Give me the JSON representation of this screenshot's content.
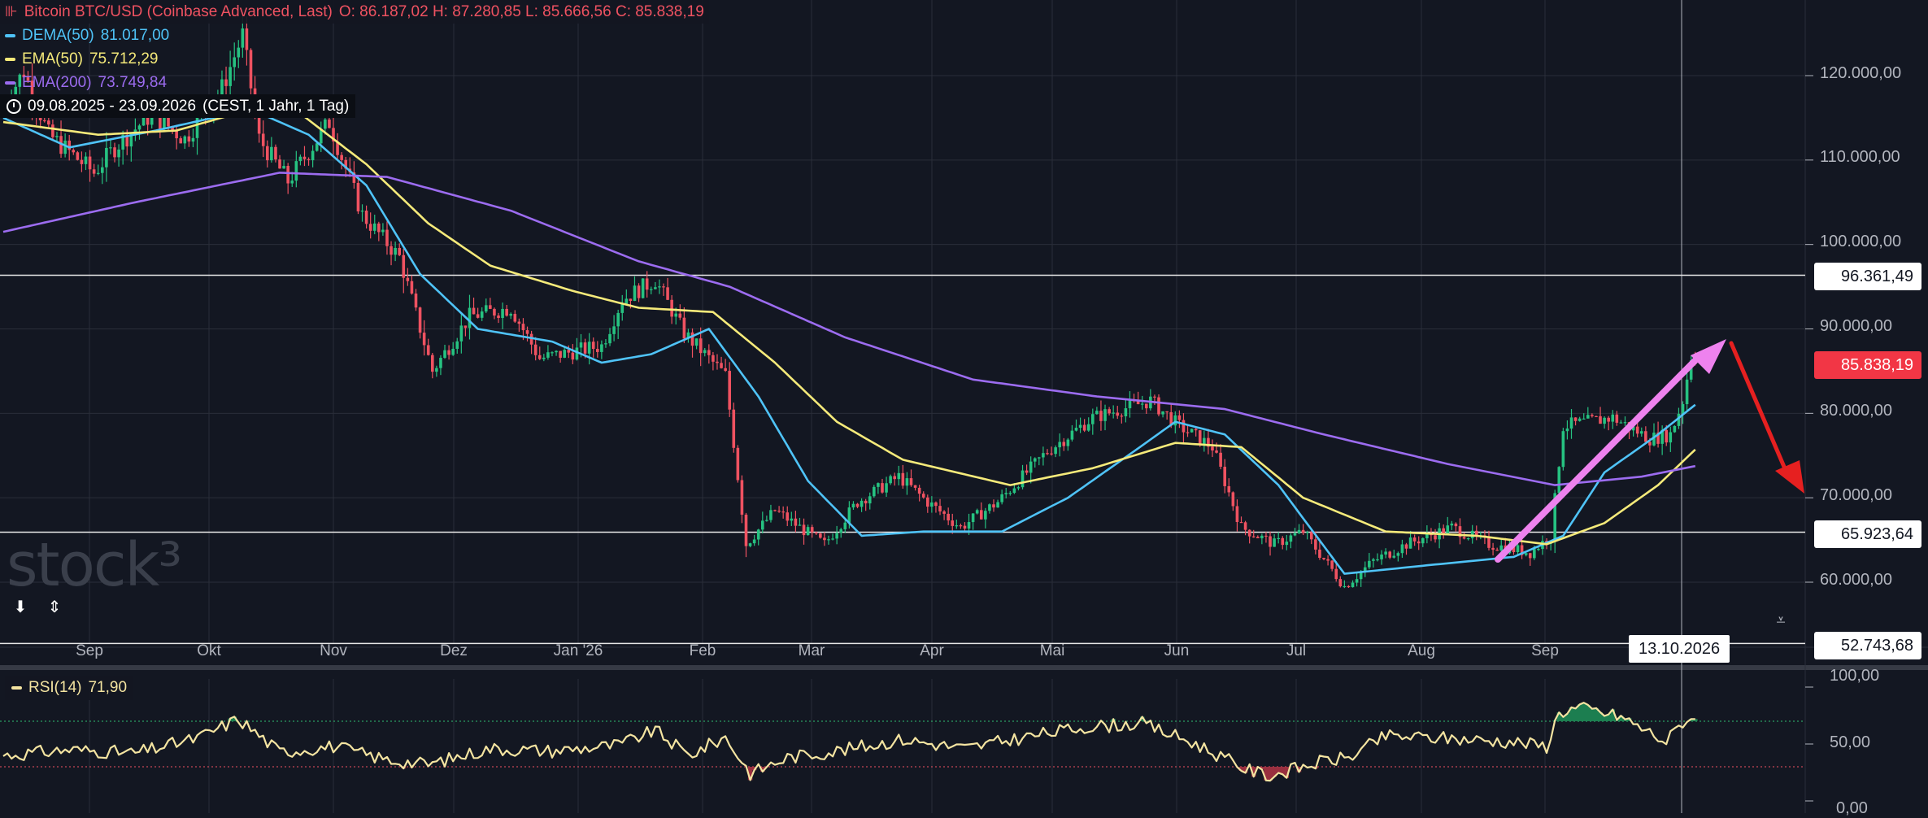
{
  "colors": {
    "background": "#131722",
    "grid": "#2a2e39",
    "candle_up": "#26c281",
    "candle_down": "#ef5261",
    "dema": "#4fc3f7",
    "ema50": "#f5ea7a",
    "ema200": "#9c6cf0",
    "rsi": "#f4e4a1",
    "annotation_up_arrow": "#ee82ee",
    "annotation_down_arrow": "#e62020"
  },
  "legend": {
    "title": "Bitcoin BTC/USD (Coinbase Advanced, Last)",
    "ohlc": "O: 86.187,02  H: 87.280,85  L: 85.666,56  C: 85.838,19",
    "dema_label": "DEMA(50)",
    "dema_value": "81.017,00",
    "ema50_label": "EMA(50)",
    "ema50_value": "75.712,29",
    "ema200_label": "EMA(200)",
    "ema200_value": "73.749,84",
    "range": "09.08.2025 - 23.09.2026",
    "range_detail": "(CEST, 1 Jahr, 1 Tag)"
  },
  "watermark": "stock³",
  "price_axis": {
    "ticks": [
      "120.000,00",
      "110.000,00",
      "100.000,00",
      "90.000,00",
      "80.000,00",
      "70.000,00",
      "60.000,00"
    ],
    "labels": {
      "resistance": "96.361,49",
      "current": "85.838,19",
      "support": "65.923,64",
      "bottom": "52.743,68"
    }
  },
  "date_axis": {
    "ticks": [
      "Sep",
      "Okt",
      "Nov",
      "Dez",
      "Jan '26",
      "Feb",
      "Mar",
      "Apr",
      "Mai",
      "Jun",
      "Jul",
      "Aug",
      "Sep"
    ],
    "crosshair_date": "13.10.2026"
  },
  "rsi_panel": {
    "label": "RSI(14)",
    "value": "71,90",
    "ticks": [
      "100,00",
      "50,00",
      "0,00"
    ]
  },
  "chart_data": [
    {
      "type": "candlestick",
      "title": "Bitcoin BTC/USD (Coinbase Advanced, Last)",
      "ylim": [
        52743.68,
        127000
      ],
      "x_start": "2025-08-09",
      "x_end": "2026-09-23",
      "horizontal_lines": [
        96361.49,
        65923.64
      ],
      "anchors": [
        [
          "2025-08-09",
          116500
        ],
        [
          "2025-08-14",
          120500
        ],
        [
          "2025-08-20",
          113000
        ],
        [
          "2025-08-31",
          108500
        ],
        [
          "2025-09-05",
          111500
        ],
        [
          "2025-09-14",
          115500
        ],
        [
          "2025-09-22",
          112500
        ],
        [
          "2025-10-01",
          118500
        ],
        [
          "2025-10-06",
          124800
        ],
        [
          "2025-10-10",
          112500
        ],
        [
          "2025-10-17",
          107500
        ],
        [
          "2025-10-27",
          114500
        ],
        [
          "2025-11-04",
          103500
        ],
        [
          "2025-11-13",
          98500
        ],
        [
          "2025-11-21",
          85000
        ],
        [
          "2025-11-30",
          91500
        ],
        [
          "2025-12-10",
          92500
        ],
        [
          "2025-12-17",
          86500
        ],
        [
          "2026-01-01",
          88000
        ],
        [
          "2026-01-06",
          93500
        ],
        [
          "2026-01-14",
          95800
        ],
        [
          "2026-01-21",
          89500
        ],
        [
          "2026-01-31",
          84500
        ],
        [
          "2026-02-05",
          64500
        ],
        [
          "2026-02-12",
          68500
        ],
        [
          "2026-02-24",
          64500
        ],
        [
          "2026-03-04",
          69500
        ],
        [
          "2026-03-14",
          72500
        ],
        [
          "2026-03-21",
          69500
        ],
        [
          "2026-03-29",
          66500
        ],
        [
          "2026-04-07",
          69500
        ],
        [
          "2026-04-19",
          75500
        ],
        [
          "2026-04-30",
          79500
        ],
        [
          "2026-05-14",
          81500
        ],
        [
          "2026-05-21",
          78500
        ],
        [
          "2026-05-29",
          76000
        ],
        [
          "2026-06-05",
          66500
        ],
        [
          "2026-06-13",
          64500
        ],
        [
          "2026-06-20",
          66000
        ],
        [
          "2026-06-30",
          59500
        ],
        [
          "2026-07-07",
          62500
        ],
        [
          "2026-07-15",
          64500
        ],
        [
          "2026-07-26",
          66500
        ],
        [
          "2026-08-04",
          64500
        ],
        [
          "2026-08-14",
          63500
        ],
        [
          "2026-08-19",
          65500
        ],
        [
          "2026-08-22",
          78500
        ],
        [
          "2026-09-03",
          79500
        ],
        [
          "2026-09-12",
          77000
        ],
        [
          "2026-09-17",
          77500
        ],
        [
          "2026-09-20",
          81500
        ],
        [
          "2026-09-22",
          86800
        ],
        [
          "2026-09-23",
          85838.19
        ]
      ],
      "last_candle": {
        "open": 86187.02,
        "high": 87280.85,
        "low": 85666.56,
        "close": 85838.19
      }
    },
    {
      "type": "line",
      "series": [
        {
          "name": "DEMA(50)",
          "last": 81017.0,
          "points": [
            [
              "2025-08-09",
              115000
            ],
            [
              "2025-08-25",
              111500
            ],
            [
              "2025-09-15",
              113500
            ],
            [
              "2025-10-08",
              116000
            ],
            [
              "2025-10-22",
              113000
            ],
            [
              "2025-11-05",
              107000
            ],
            [
              "2025-11-18",
              96500
            ],
            [
              "2025-12-02",
              90000
            ],
            [
              "2025-12-20",
              88500
            ],
            [
              "2026-01-01",
              86000
            ],
            [
              "2026-01-13",
              87000
            ],
            [
              "2026-01-27",
              90000
            ],
            [
              "2026-02-08",
              82000
            ],
            [
              "2026-02-20",
              72000
            ],
            [
              "2026-03-05",
              65500
            ],
            [
              "2026-03-20",
              66000
            ],
            [
              "2026-04-08",
              66000
            ],
            [
              "2026-04-24",
              70000
            ],
            [
              "2026-05-10",
              75500
            ],
            [
              "2026-05-20",
              79000
            ],
            [
              "2026-06-01",
              77500
            ],
            [
              "2026-06-14",
              71500
            ],
            [
              "2026-06-30",
              61000
            ],
            [
              "2026-07-20",
              62000
            ],
            [
              "2026-08-10",
              63000
            ],
            [
              "2026-08-22",
              65500
            ],
            [
              "2026-09-01",
              73000
            ],
            [
              "2026-09-14",
              77500
            ],
            [
              "2026-09-23",
              81017
            ]
          ]
        },
        {
          "name": "EMA(50)",
          "last": 75712.29,
          "points": [
            [
              "2025-08-09",
              114500
            ],
            [
              "2025-09-01",
              113000
            ],
            [
              "2025-09-20",
              113500
            ],
            [
              "2025-10-08",
              116000
            ],
            [
              "2025-10-20",
              115500
            ],
            [
              "2025-11-05",
              109500
            ],
            [
              "2025-11-20",
              102500
            ],
            [
              "2025-12-05",
              97500
            ],
            [
              "2025-12-25",
              94500
            ],
            [
              "2026-01-10",
              92500
            ],
            [
              "2026-01-28",
              92000
            ],
            [
              "2026-02-12",
              86000
            ],
            [
              "2026-02-27",
              79000
            ],
            [
              "2026-03-15",
              74500
            ],
            [
              "2026-04-10",
              71500
            ],
            [
              "2026-04-30",
              73500
            ],
            [
              "2026-05-20",
              76500
            ],
            [
              "2026-06-05",
              76000
            ],
            [
              "2026-06-20",
              70000
            ],
            [
              "2026-07-10",
              66000
            ],
            [
              "2026-08-01",
              65500
            ],
            [
              "2026-08-18",
              64500
            ],
            [
              "2026-09-01",
              67000
            ],
            [
              "2026-09-14",
              71500
            ],
            [
              "2026-09-23",
              75712
            ]
          ]
        },
        {
          "name": "EMA(200)",
          "last": 73749.84,
          "points": [
            [
              "2025-08-09",
              101500
            ],
            [
              "2025-09-10",
              105000
            ],
            [
              "2025-10-15",
              108500
            ],
            [
              "2025-11-10",
              108000
            ],
            [
              "2025-12-10",
              104000
            ],
            [
              "2026-01-10",
              98000
            ],
            [
              "2026-02-01",
              95000
            ],
            [
              "2026-03-01",
              89000
            ],
            [
              "2026-04-01",
              84000
            ],
            [
              "2026-05-01",
              82000
            ],
            [
              "2026-06-01",
              80500
            ],
            [
              "2026-06-25",
              77500
            ],
            [
              "2026-07-25",
              74000
            ],
            [
              "2026-08-20",
              71500
            ],
            [
              "2026-09-10",
              72500
            ],
            [
              "2026-09-23",
              73750
            ]
          ]
        }
      ]
    },
    {
      "type": "line",
      "title": "RSI(14)",
      "ylim": [
        0,
        100
      ],
      "overbought": 70,
      "oversold": 30,
      "last": 71.9,
      "points": [
        [
          "2025-08-09",
          40
        ],
        [
          "2025-08-25",
          45
        ],
        [
          "2025-09-10",
          42
        ],
        [
          "2025-09-25",
          55
        ],
        [
          "2025-10-05",
          72
        ],
        [
          "2025-10-15",
          43
        ],
        [
          "2025-10-28",
          48
        ],
        [
          "2025-11-10",
          36
        ],
        [
          "2025-11-20",
          32
        ],
        [
          "2025-12-05",
          46
        ],
        [
          "2025-12-20",
          44
        ],
        [
          "2026-01-05",
          49
        ],
        [
          "2026-01-14",
          62
        ],
        [
          "2026-01-22",
          40
        ],
        [
          "2026-01-31",
          56
        ],
        [
          "2026-02-06",
          24
        ],
        [
          "2026-02-15",
          38
        ],
        [
          "2026-03-01",
          45
        ],
        [
          "2026-03-15",
          54
        ],
        [
          "2026-03-30",
          46
        ],
        [
          "2026-04-15",
          57
        ],
        [
          "2026-04-28",
          65
        ],
        [
          "2026-05-12",
          68
        ],
        [
          "2026-05-25",
          50
        ],
        [
          "2026-06-06",
          28
        ],
        [
          "2026-06-12",
          22
        ],
        [
          "2026-06-25",
          35
        ],
        [
          "2026-07-01",
          38
        ],
        [
          "2026-07-10",
          57
        ],
        [
          "2026-07-25",
          55
        ],
        [
          "2026-08-10",
          52
        ],
        [
          "2026-08-18",
          48
        ],
        [
          "2026-08-21",
          78
        ],
        [
          "2026-08-26",
          82
        ],
        [
          "2026-09-05",
          74
        ],
        [
          "2026-09-12",
          60
        ],
        [
          "2026-09-16",
          52
        ],
        [
          "2026-09-20",
          70
        ],
        [
          "2026-09-23",
          71.9
        ]
      ]
    }
  ]
}
